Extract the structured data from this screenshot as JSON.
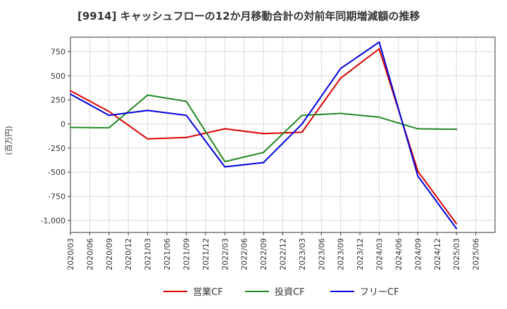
{
  "chart_data": {
    "type": "line",
    "title": "[9914]  キャッシュフローの12か月移動合計の対前年同期増減額の推移",
    "ylabel": "(百万円)",
    "xlabel": "",
    "ylim": [
      -1125,
      900
    ],
    "yticks": [
      750,
      500,
      250,
      0,
      -250,
      -500,
      -750,
      -1000
    ],
    "ytick_labels": [
      "750",
      "500",
      "250",
      "0",
      "-250",
      "-500",
      "-750",
      "-1,000"
    ],
    "x": [
      "2020/03",
      "2020/06",
      "2020/09",
      "2020/12",
      "2021/03",
      "2021/06",
      "2021/09",
      "2021/12",
      "2022/03",
      "2022/06",
      "2022/09",
      "2022/12",
      "2023/03",
      "2023/06",
      "2023/09",
      "2023/12",
      "2024/03",
      "2024/06",
      "2024/09",
      "2024/12",
      "2025/03",
      "2025/06"
    ],
    "grid": true,
    "legend": "bottom-center",
    "series": [
      {
        "name": "営業CF",
        "color": "#dd0000",
        "values": [
          345,
          null,
          130,
          null,
          -155,
          null,
          -140,
          null,
          -50,
          null,
          -100,
          null,
          -85,
          null,
          475,
          null,
          780,
          null,
          -490,
          null,
          -1035,
          null
        ]
      },
      {
        "name": "投資CF",
        "color": "#228822",
        "values": [
          -35,
          null,
          -40,
          null,
          300,
          null,
          235,
          null,
          -390,
          null,
          -295,
          null,
          90,
          null,
          110,
          null,
          70,
          null,
          -50,
          null,
          -55,
          null
        ]
      },
      {
        "name": "フリーCF",
        "color": "#0000dd",
        "values": [
          310,
          null,
          90,
          null,
          140,
          null,
          90,
          null,
          -445,
          null,
          -400,
          null,
          0,
          null,
          575,
          null,
          850,
          null,
          -540,
          null,
          -1085,
          null
        ]
      }
    ]
  }
}
